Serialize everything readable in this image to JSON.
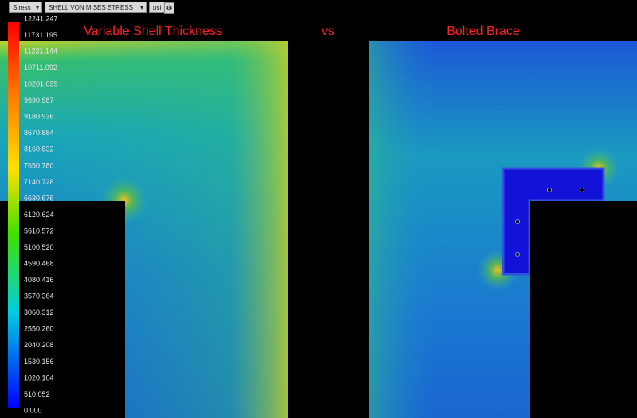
{
  "toolbar": {
    "result": "Stress",
    "component": "SHELL VON MISES STRESS",
    "units": "psi"
  },
  "legend": {
    "labels": [
      "12241.247",
      "11731.195",
      "11221.144",
      "10711.092",
      "10201.039",
      "9690.987",
      "9180.936",
      "8670.884",
      "8160.832",
      "7650.780",
      "7140.728",
      "6630.676",
      "6120.624",
      "5610.572",
      "5100.520",
      "4590.468",
      "4080.416",
      "3570.364",
      "3060.312",
      "2550.260",
      "2040.208",
      "1530.156",
      "1020.104",
      "510.052",
      "0.000"
    ]
  },
  "titles": {
    "left": "Variable Shell Thickness",
    "middle": "vs",
    "right": "Bolted Brace"
  }
}
